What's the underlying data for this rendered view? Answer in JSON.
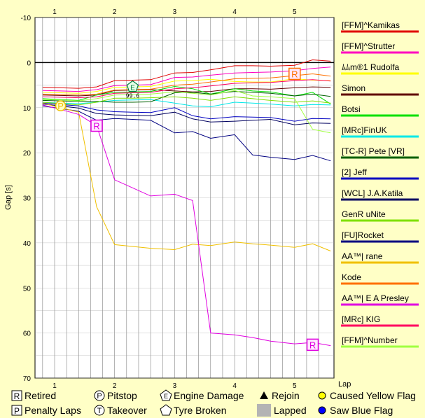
{
  "chart_data": {
    "type": "line",
    "xlabel": "Lap",
    "ylabel": "Gap [s]",
    "x_ticks": [
      "1",
      "2",
      "3",
      "4",
      "5"
    ],
    "y_ticks": [
      "-10",
      "0",
      "10",
      "20",
      "30",
      "40",
      "50",
      "60",
      "70"
    ],
    "ylim": [
      -10,
      70
    ],
    "y_inverted": true,
    "grid": true,
    "legend_position": "right",
    "x": [
      0.8,
      1.1,
      1.4,
      1.7,
      2.0,
      2.3,
      2.6,
      3.0,
      3.3,
      3.6,
      4.0,
      4.3,
      4.6,
      5.0,
      5.3,
      5.6
    ],
    "series": [
      {
        "name": "[FFM]^Kamikas",
        "color": "#e00000",
        "values": [
          5.5,
          5.6,
          5.7,
          5.4,
          4.0,
          3.9,
          3.8,
          2.3,
          2.2,
          1.6,
          0.7,
          0.7,
          0.8,
          0.6,
          -0.6,
          -0.3
        ]
      },
      {
        "name": "[FFM]^Strutter",
        "color": "#ff00c0",
        "values": [
          6.2,
          6.3,
          6.4,
          6.0,
          5.1,
          5.0,
          4.9,
          3.3,
          3.2,
          2.8,
          2.3,
          2.2,
          2.1,
          1.8,
          1.3,
          1.0
        ]
      },
      {
        "name": "ﾑﾑm®1 Rudolfa",
        "color": "#ffff00",
        "values": [
          6.6,
          6.7,
          6.8,
          6.4,
          5.5,
          5.4,
          5.3,
          4.1,
          4.0,
          3.7,
          4.2,
          4.3,
          4.3,
          3.6,
          3.9,
          4.0
        ]
      },
      {
        "name": "Simon",
        "color": "#600000",
        "values": [
          7.2,
          7.3,
          7.4,
          7.2,
          6.2,
          6.1,
          6.0,
          6.3,
          6.5,
          6.4,
          5.8,
          5.8,
          5.9,
          5.6,
          5.4,
          5.5
        ]
      },
      {
        "name": "Botsi",
        "color": "#00e000",
        "values": [
          8.0,
          8.2,
          8.4,
          7.2,
          6.6,
          6.5,
          6.4,
          5.3,
          5.8,
          7.0,
          5.8,
          6.3,
          6.5,
          7.4,
          6.6,
          9.2
        ]
      },
      {
        "name": "[MRc]FinUK",
        "color": "#00e8e8",
        "values": [
          8.8,
          9.0,
          9.1,
          8.8,
          8.4,
          8.3,
          8.2,
          9.0,
          9.6,
          9.8,
          8.8,
          9.0,
          9.2,
          9.6,
          9.3,
          9.4
        ]
      },
      {
        "name": "[TC-R] Pete [VR]",
        "color": "#006000",
        "values": [
          8.4,
          8.5,
          8.6,
          8.6,
          8.8,
          8.8,
          8.7,
          6.7,
          6.6,
          7.0,
          6.4,
          6.6,
          6.8,
          7.4,
          7.0,
          7.5
        ]
      },
      {
        "name": "[2] Jeff",
        "color": "#0000c0",
        "values": [
          9.0,
          9.3,
          9.6,
          10.5,
          10.9,
          11.0,
          11.1,
          10.0,
          11.8,
          12.5,
          12.0,
          12.1,
          12.2,
          13.0,
          12.4,
          12.5
        ]
      },
      {
        "name": "[WCL] J.A.Katila",
        "color": "#000060",
        "values": [
          9.2,
          9.6,
          10.1,
          11.3,
          11.6,
          11.7,
          11.8,
          11.0,
          12.5,
          13.2,
          13.0,
          12.8,
          12.6,
          13.8,
          13.4,
          13.5
        ]
      },
      {
        "name": "GenR uNite",
        "color": "#80e000",
        "values": [
          8.8,
          9.1,
          9.4,
          8.8,
          7.9,
          7.9,
          7.8,
          7.6,
          7.9,
          8.4,
          7.6,
          8.0,
          8.4,
          8.8,
          8.5,
          9.0
        ]
      },
      {
        "name": "[FU]Rocket",
        "color": "#000080",
        "values": [
          9.6,
          10.2,
          10.8,
          12.8,
          12.4,
          12.6,
          12.8,
          15.6,
          15.3,
          16.8,
          16.0,
          20.5,
          21.0,
          21.5,
          20.6,
          21.8
        ]
      },
      {
        "name": "AA™| rane",
        "color": "#f0c000",
        "values": [
          9.0,
          10.0,
          11.0,
          32.0,
          40.4,
          40.8,
          41.2,
          41.5,
          40.3,
          40.6,
          39.8,
          40.2,
          40.5,
          41.0,
          40.2,
          41.8
        ]
      },
      {
        "name": "Kode",
        "color": "#ff7000",
        "values": [
          7.0,
          7.1,
          7.2,
          7.0,
          6.1,
          6.0,
          5.9,
          5.0,
          4.8,
          4.3,
          3.6,
          3.5,
          3.4,
          2.9,
          2.5,
          3.0
        ]
      },
      {
        "name": "AA™| E A Presley",
        "color": "#e000e0",
        "values": [
          9.4,
          10.4,
          11.5,
          14.0,
          26.0,
          27.8,
          29.6,
          29.2,
          30.6,
          60.0,
          60.4,
          61.0,
          61.8,
          62.4,
          62.1,
          62.8
        ]
      },
      {
        "name": "[MRc] KIG",
        "color": "#ff0060",
        "values": [
          7.6,
          7.7,
          7.8,
          7.6,
          6.8,
          6.7,
          6.6,
          5.8,
          5.6,
          5.2,
          4.6,
          4.5,
          4.4,
          4.0,
          3.8,
          4.1
        ]
      },
      {
        "name": "[FFM]^Number",
        "color": "#a0ff40",
        "values": [
          8.2,
          8.3,
          8.5,
          8.0,
          7.2,
          7.1,
          7.0,
          6.5,
          6.8,
          7.2,
          6.2,
          7.4,
          7.6,
          8.0,
          14.8,
          15.6
        ]
      }
    ],
    "markers": [
      {
        "type": "pitstop",
        "label": "P",
        "x": 1.1,
        "y": 9.6,
        "color": "#f0c000"
      },
      {
        "type": "retired",
        "label": "R",
        "x": 1.7,
        "y": 14.0,
        "color": "#e000e0"
      },
      {
        "type": "engine_damage",
        "label": "E",
        "x": 2.3,
        "y": 5.3,
        "color": "#008040"
      },
      {
        "type": "retired",
        "label": "R",
        "x": 5.0,
        "y": 2.5,
        "color": "#ff7000"
      },
      {
        "type": "retired",
        "label": "R",
        "x": 5.3,
        "y": 62.6,
        "color": "#e000e0"
      }
    ],
    "annotations": [
      {
        "text": "99.6",
        "x": 2.3,
        "y": 7.3
      }
    ],
    "legend_items": [
      {
        "symbol": "R",
        "label": "Retired"
      },
      {
        "symbol": "P",
        "label": "Penalty Laps"
      },
      {
        "symbol": "P",
        "label": "Pitstop"
      },
      {
        "symbol": "T",
        "label": "Takeover"
      },
      {
        "symbol": "E",
        "label": "Engine Damage"
      },
      {
        "symbol": "tyre",
        "label": "Tyre Broken"
      },
      {
        "symbol": "triangle",
        "label": "Rejoin"
      },
      {
        "symbol": "gray-square",
        "label": "Lapped"
      },
      {
        "symbol": "yellow-dot",
        "label": "Caused Yellow Flag"
      },
      {
        "symbol": "blue-dot",
        "label": "Saw Blue Flag"
      }
    ]
  }
}
